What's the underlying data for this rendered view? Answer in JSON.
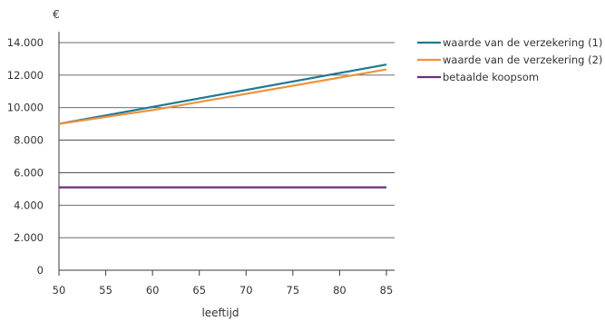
{
  "chart_data": {
    "type": "line",
    "xlabel": "leeftijd",
    "ylabel": "€",
    "xlim": [
      50,
      85
    ],
    "ylim": [
      0,
      14000
    ],
    "x_ticks": [
      50,
      55,
      60,
      65,
      70,
      75,
      80,
      85
    ],
    "x_tick_labels": [
      "50",
      "55",
      "60",
      "65",
      "70",
      "75",
      "80",
      "85"
    ],
    "y_ticks": [
      0,
      2000,
      4000,
      6000,
      8000,
      10000,
      12000,
      14000
    ],
    "y_tick_labels": [
      "0",
      "2.000",
      "4.000",
      "6.000",
      "8.000",
      "10.000",
      "12.000",
      "14.000"
    ],
    "grid": "horizontal",
    "legend_position": "right",
    "series": [
      {
        "name": "waarde van de verzekering (1)",
        "color": "#1e7a94",
        "x": [
          50,
          85
        ],
        "y": [
          9000,
          12650
        ]
      },
      {
        "name": "waarde van de verzekering (2)",
        "color": "#f0923c",
        "x": [
          50,
          60,
          85
        ],
        "y": [
          9000,
          9850,
          12350
        ]
      },
      {
        "name": "betaalde koopsom",
        "color": "#6a2f7a",
        "x": [
          50,
          85
        ],
        "y": [
          5100,
          5100
        ]
      }
    ]
  }
}
